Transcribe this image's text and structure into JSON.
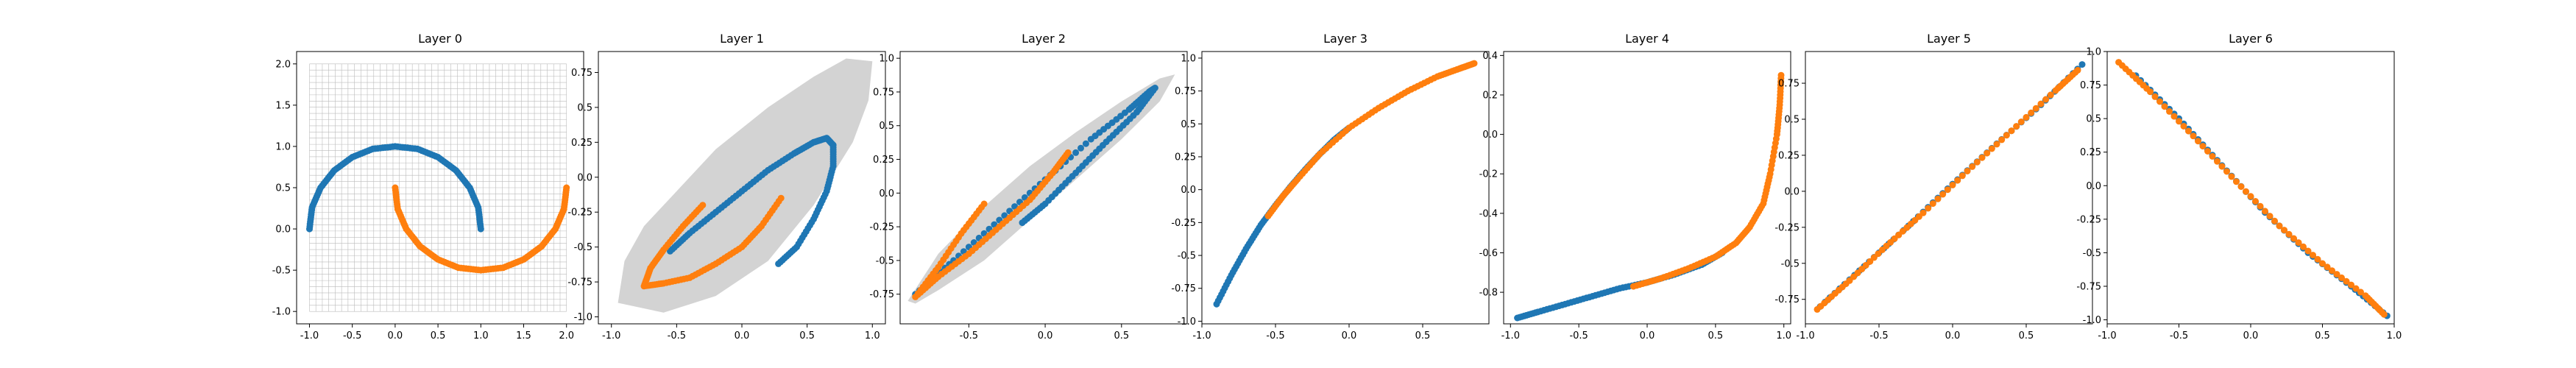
{
  "colors": {
    "class_0": "#1f77b4",
    "class_1": "#ff7f0e",
    "manifold": "#d3d3d3",
    "grid": "#bbbbbb"
  },
  "chart_data": [
    {
      "type": "scatter",
      "title": "Layer 0",
      "xlim": [
        -1.15,
        2.2
      ],
      "ylim": [
        -1.15,
        2.15
      ],
      "xticks": [
        -1.0,
        -0.5,
        0.0,
        0.5,
        1.0,
        1.5,
        2.0
      ],
      "yticks": [
        -1.0,
        -0.5,
        0.0,
        0.5,
        1.0,
        1.5,
        2.0
      ],
      "grid_mesh": {
        "x_range": [
          -1.0,
          2.0
        ],
        "y_range": [
          -1.0,
          2.0
        ],
        "lines": 40
      },
      "series": [
        {
          "class": 0,
          "points": [
            [
              -1.0,
              0.0
            ],
            [
              -0.97,
              0.26
            ],
            [
              -0.87,
              0.5
            ],
            [
              -0.71,
              0.71
            ],
            [
              -0.5,
              0.87
            ],
            [
              -0.26,
              0.97
            ],
            [
              0.0,
              1.0
            ],
            [
              0.26,
              0.97
            ],
            [
              0.5,
              0.87
            ],
            [
              0.71,
              0.71
            ],
            [
              0.87,
              0.5
            ],
            [
              0.97,
              0.26
            ],
            [
              1.0,
              0.0
            ]
          ]
        },
        {
          "class": 1,
          "points": [
            [
              0.0,
              0.5
            ],
            [
              0.03,
              0.24
            ],
            [
              0.13,
              0.0
            ],
            [
              0.29,
              -0.21
            ],
            [
              0.5,
              -0.37
            ],
            [
              0.74,
              -0.47
            ],
            [
              1.0,
              -0.5
            ],
            [
              1.26,
              -0.47
            ],
            [
              1.5,
              -0.37
            ],
            [
              1.71,
              -0.21
            ],
            [
              1.87,
              0.0
            ],
            [
              1.97,
              0.24
            ],
            [
              2.0,
              0.5
            ]
          ]
        }
      ]
    },
    {
      "type": "scatter",
      "title": "Layer 1",
      "xlim": [
        -1.1,
        1.1
      ],
      "ylim": [
        -1.05,
        0.9
      ],
      "xticks": [
        -1.0,
        -0.5,
        0.0,
        0.5,
        1.0
      ],
      "yticks": [
        -1.0,
        -0.75,
        -0.5,
        -0.25,
        0.0,
        0.25,
        0.5,
        0.75
      ],
      "manifold": [
        [
          -0.95,
          -0.9
        ],
        [
          -0.9,
          -0.6
        ],
        [
          -0.75,
          -0.35
        ],
        [
          -0.5,
          -0.1
        ],
        [
          -0.2,
          0.2
        ],
        [
          0.2,
          0.5
        ],
        [
          0.55,
          0.72
        ],
        [
          0.8,
          0.85
        ],
        [
          1.0,
          0.83
        ],
        [
          0.97,
          0.55
        ],
        [
          0.85,
          0.25
        ],
        [
          0.55,
          -0.2
        ],
        [
          0.2,
          -0.6
        ],
        [
          -0.2,
          -0.85
        ],
        [
          -0.6,
          -0.97
        ]
      ],
      "series": [
        {
          "class": 0,
          "points": [
            [
              -0.55,
              -0.53
            ],
            [
              -0.4,
              -0.4
            ],
            [
              -0.2,
              -0.25
            ],
            [
              0.0,
              -0.1
            ],
            [
              0.2,
              0.05
            ],
            [
              0.4,
              0.17
            ],
            [
              0.55,
              0.25
            ],
            [
              0.65,
              0.28
            ],
            [
              0.7,
              0.23
            ],
            [
              0.7,
              0.08
            ],
            [
              0.65,
              -0.1
            ],
            [
              0.55,
              -0.3
            ],
            [
              0.42,
              -0.5
            ],
            [
              0.28,
              -0.62
            ]
          ]
        },
        {
          "class": 1,
          "points": [
            [
              -0.3,
              -0.2
            ],
            [
              -0.45,
              -0.35
            ],
            [
              -0.6,
              -0.52
            ],
            [
              -0.7,
              -0.65
            ],
            [
              -0.75,
              -0.78
            ],
            [
              -0.6,
              -0.76
            ],
            [
              -0.4,
              -0.72
            ],
            [
              -0.2,
              -0.62
            ],
            [
              0.0,
              -0.5
            ],
            [
              0.15,
              -0.35
            ],
            [
              0.3,
              -0.15
            ]
          ]
        }
      ]
    },
    {
      "type": "scatter",
      "title": "Layer 2",
      "xlim": [
        -0.95,
        0.93
      ],
      "ylim": [
        -0.97,
        1.05
      ],
      "xticks": [
        -0.5,
        0.0,
        0.5
      ],
      "yticks": [
        -0.75,
        -0.5,
        -0.25,
        0.0,
        0.25,
        0.5,
        0.75,
        1.0
      ],
      "manifold": [
        [
          -0.9,
          -0.8
        ],
        [
          -0.7,
          -0.45
        ],
        [
          -0.4,
          -0.1
        ],
        [
          -0.1,
          0.2
        ],
        [
          0.2,
          0.45
        ],
        [
          0.5,
          0.68
        ],
        [
          0.75,
          0.85
        ],
        [
          0.85,
          0.88
        ],
        [
          0.75,
          0.68
        ],
        [
          0.5,
          0.4
        ],
        [
          0.2,
          0.1
        ],
        [
          -0.1,
          -0.2
        ],
        [
          -0.4,
          -0.5
        ],
        [
          -0.7,
          -0.72
        ],
        [
          -0.85,
          -0.82
        ]
      ],
      "series": [
        {
          "class": 0,
          "points": [
            [
              -0.85,
              -0.75
            ],
            [
              -0.6,
              -0.5
            ],
            [
              -0.3,
              -0.2
            ],
            [
              0.0,
              0.1
            ],
            [
              0.3,
              0.4
            ],
            [
              0.55,
              0.62
            ],
            [
              0.68,
              0.75
            ],
            [
              0.72,
              0.78
            ],
            [
              0.6,
              0.6
            ],
            [
              0.4,
              0.38
            ],
            [
              0.2,
              0.15
            ],
            [
              0.0,
              -0.08
            ],
            [
              -0.15,
              -0.22
            ]
          ]
        },
        {
          "class": 1,
          "points": [
            [
              -0.4,
              -0.08
            ],
            [
              -0.55,
              -0.3
            ],
            [
              -0.7,
              -0.55
            ],
            [
              -0.85,
              -0.77
            ],
            [
              -0.7,
              -0.62
            ],
            [
              -0.5,
              -0.45
            ],
            [
              -0.3,
              -0.25
            ],
            [
              -0.1,
              -0.05
            ],
            [
              0.05,
              0.15
            ],
            [
              0.15,
              0.3
            ]
          ]
        }
      ]
    },
    {
      "type": "scatter",
      "title": "Layer 3",
      "xlim": [
        -1.0,
        0.95
      ],
      "ylim": [
        -1.02,
        1.05
      ],
      "xticks": [
        -1.0,
        -0.5,
        0.0,
        0.5
      ],
      "yticks": [
        -1.0,
        -0.75,
        -0.5,
        -0.25,
        0.0,
        0.25,
        0.5,
        0.75,
        1.0
      ],
      "series": [
        {
          "class": 0,
          "points": [
            [
              -0.9,
              -0.87
            ],
            [
              -0.8,
              -0.65
            ],
            [
              -0.7,
              -0.45
            ],
            [
              -0.6,
              -0.27
            ],
            [
              -0.5,
              -0.12
            ],
            [
              -0.4,
              0.02
            ],
            [
              -0.3,
              0.15
            ],
            [
              -0.2,
              0.27
            ],
            [
              -0.1,
              0.38
            ],
            [
              0.0,
              0.47
            ]
          ]
        },
        {
          "class": 1,
          "points": [
            [
              -0.55,
              -0.2
            ],
            [
              -0.45,
              -0.05
            ],
            [
              -0.35,
              0.08
            ],
            [
              -0.2,
              0.27
            ],
            [
              0.0,
              0.47
            ],
            [
              0.2,
              0.62
            ],
            [
              0.4,
              0.75
            ],
            [
              0.6,
              0.86
            ],
            [
              0.75,
              0.92
            ],
            [
              0.85,
              0.96
            ]
          ]
        }
      ]
    },
    {
      "type": "scatter",
      "title": "Layer 4",
      "xlim": [
        -1.05,
        1.05
      ],
      "ylim": [
        -0.96,
        0.42
      ],
      "xticks": [
        -1.0,
        -0.5,
        0.0,
        0.5,
        1.0
      ],
      "yticks": [
        -0.8,
        -0.6,
        -0.4,
        -0.2,
        0.0,
        0.2,
        0.4
      ],
      "series": [
        {
          "class": 0,
          "points": [
            [
              -0.95,
              -0.93
            ],
            [
              -0.8,
              -0.9
            ],
            [
              -0.6,
              -0.86
            ],
            [
              -0.4,
              -0.82
            ],
            [
              -0.2,
              -0.78
            ],
            [
              0.0,
              -0.75
            ],
            [
              0.2,
              -0.71
            ],
            [
              0.4,
              -0.66
            ],
            [
              0.55,
              -0.6
            ]
          ]
        },
        {
          "class": 1,
          "points": [
            [
              -0.1,
              -0.77
            ],
            [
              0.1,
              -0.73
            ],
            [
              0.3,
              -0.68
            ],
            [
              0.5,
              -0.62
            ],
            [
              0.65,
              -0.55
            ],
            [
              0.75,
              -0.47
            ],
            [
              0.85,
              -0.35
            ],
            [
              0.9,
              -0.2
            ],
            [
              0.95,
              0.0
            ],
            [
              0.97,
              0.15
            ],
            [
              0.98,
              0.3
            ]
          ]
        }
      ]
    },
    {
      "type": "scatter",
      "title": "Layer 5",
      "xlim": [
        -1.0,
        0.95
      ],
      "ylim": [
        -0.92,
        0.97
      ],
      "xticks": [
        -1.0,
        -0.5,
        0.0,
        0.5
      ],
      "yticks": [
        -0.75,
        -0.5,
        -0.25,
        0.0,
        0.25,
        0.5,
        0.75
      ],
      "series": [
        {
          "class": 0,
          "points": [
            [
              -0.9,
              -0.8
            ],
            [
              -0.6,
              -0.52
            ],
            [
              -0.3,
              -0.24
            ],
            [
              0.0,
              0.05
            ],
            [
              0.3,
              0.33
            ],
            [
              0.6,
              0.6
            ],
            [
              0.88,
              0.88
            ]
          ]
        },
        {
          "class": 1,
          "points": [
            [
              -0.92,
              -0.82
            ],
            [
              -0.7,
              -0.62
            ],
            [
              -0.45,
              -0.38
            ],
            [
              -0.2,
              -0.15
            ],
            [
              0.1,
              0.14
            ],
            [
              0.4,
              0.42
            ],
            [
              0.7,
              0.7
            ],
            [
              0.85,
              0.84
            ]
          ]
        }
      ]
    },
    {
      "type": "scatter",
      "title": "Layer 6",
      "xlim": [
        -1.0,
        1.0
      ],
      "ylim": [
        -1.03,
        1.0
      ],
      "xticks": [
        -1.0,
        -0.5,
        0.0,
        0.5,
        1.0
      ],
      "yticks": [
        -1.0,
        -0.75,
        -0.5,
        -0.25,
        0.0,
        0.25,
        0.5,
        0.75,
        1.0
      ],
      "series": [
        {
          "class": 0,
          "points": [
            [
              -0.8,
              0.82
            ],
            [
              -0.5,
              0.5
            ],
            [
              -0.2,
              0.15
            ],
            [
              0.1,
              -0.2
            ],
            [
              0.4,
              -0.5
            ],
            [
              0.7,
              -0.75
            ],
            [
              0.95,
              -0.97
            ]
          ]
        },
        {
          "class": 1,
          "points": [
            [
              -0.92,
              0.92
            ],
            [
              -0.7,
              0.7
            ],
            [
              -0.4,
              0.37
            ],
            [
              -0.1,
              0.03
            ],
            [
              0.2,
              -0.3
            ],
            [
              0.5,
              -0.58
            ],
            [
              0.8,
              -0.82
            ],
            [
              0.93,
              -0.96
            ]
          ]
        }
      ]
    }
  ]
}
